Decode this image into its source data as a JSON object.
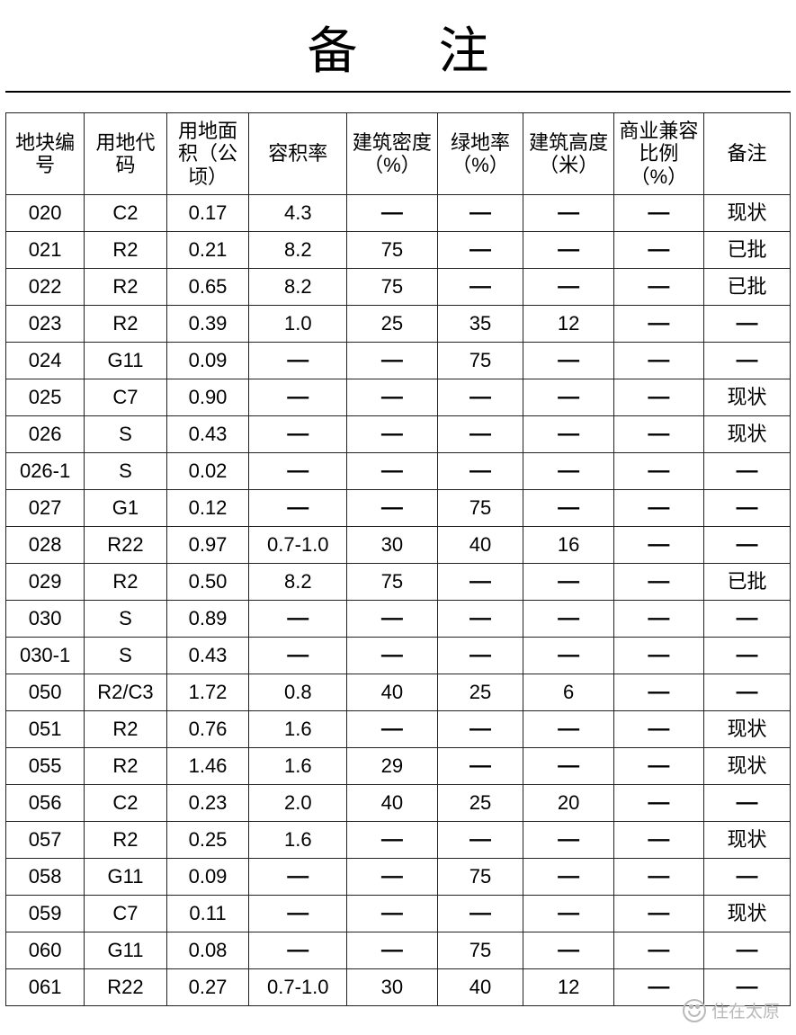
{
  "title": "备注",
  "dash": "—",
  "watermark": "住在太原",
  "table": {
    "type": "table",
    "border_color": "#222222",
    "background_color": "#ffffff",
    "text_color": "#000000",
    "header_fontsize": 22,
    "cell_fontsize": 22,
    "columns": [
      "地块编号",
      "用地代码",
      "用地面积（公顷）",
      "容积率",
      "建筑密度（%）",
      "绿地率（%）",
      "建筑高度（米）",
      "商业兼容比例（%）",
      "备注"
    ],
    "column_widths_pct": [
      10,
      10.5,
      10.5,
      12.5,
      11.5,
      11,
      11.5,
      11.5,
      11
    ],
    "rows": [
      [
        "020",
        "C2",
        "0.17",
        "4.3",
        "—",
        "—",
        "—",
        "—",
        "现状"
      ],
      [
        "021",
        "R2",
        "0.21",
        "8.2",
        "75",
        "—",
        "—",
        "—",
        "已批"
      ],
      [
        "022",
        "R2",
        "0.65",
        "8.2",
        "75",
        "—",
        "—",
        "—",
        "已批"
      ],
      [
        "023",
        "R2",
        "0.39",
        "1.0",
        "25",
        "35",
        "12",
        "—",
        "—"
      ],
      [
        "024",
        "G11",
        "0.09",
        "—",
        "—",
        "75",
        "—",
        "—",
        "—"
      ],
      [
        "025",
        "C7",
        "0.90",
        "—",
        "—",
        "—",
        "—",
        "—",
        "现状"
      ],
      [
        "026",
        "S",
        "0.43",
        "—",
        "—",
        "—",
        "—",
        "—",
        "现状"
      ],
      [
        "026-1",
        "S",
        "0.02",
        "—",
        "—",
        "—",
        "—",
        "—",
        "—"
      ],
      [
        "027",
        "G1",
        "0.12",
        "—",
        "—",
        "75",
        "—",
        "—",
        "—"
      ],
      [
        "028",
        "R22",
        "0.97",
        "0.7-1.0",
        "30",
        "40",
        "16",
        "—",
        "—"
      ],
      [
        "029",
        "R2",
        "0.50",
        "8.2",
        "75",
        "—",
        "—",
        "—",
        "已批"
      ],
      [
        "030",
        "S",
        "0.89",
        "—",
        "—",
        "—",
        "—",
        "—",
        "—"
      ],
      [
        "030-1",
        "S",
        "0.43",
        "—",
        "—",
        "—",
        "—",
        "—",
        "—"
      ],
      [
        "050",
        "R2/C3",
        "1.72",
        "0.8",
        "40",
        "25",
        "6",
        "—",
        "—"
      ],
      [
        "051",
        "R2",
        "0.76",
        "1.6",
        "—",
        "—",
        "—",
        "—",
        "现状"
      ],
      [
        "055",
        "R2",
        "1.46",
        "1.6",
        "29",
        "—",
        "—",
        "—",
        "现状"
      ],
      [
        "056",
        "C2",
        "0.23",
        "2.0",
        "40",
        "25",
        "20",
        "—",
        "—"
      ],
      [
        "057",
        "R2",
        "0.25",
        "1.6",
        "—",
        "—",
        "—",
        "—",
        "现状"
      ],
      [
        "058",
        "G11",
        "0.09",
        "—",
        "—",
        "75",
        "—",
        "—",
        "—"
      ],
      [
        "059",
        "C7",
        "0.11",
        "—",
        "—",
        "—",
        "—",
        "—",
        "现状"
      ],
      [
        "060",
        "G11",
        "0.08",
        "—",
        "—",
        "75",
        "—",
        "—",
        "—"
      ],
      [
        "061",
        "R22",
        "0.27",
        "0.7-1.0",
        "30",
        "40",
        "12",
        "—",
        "—"
      ]
    ]
  }
}
